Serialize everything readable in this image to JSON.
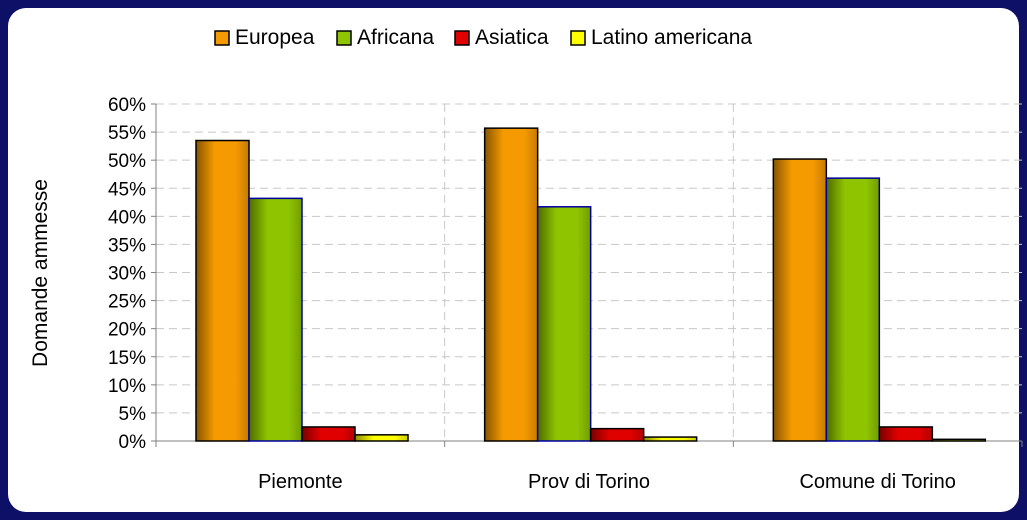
{
  "chart_data": {
    "type": "bar",
    "categories": [
      "Piemonte",
      "Prov di Torino",
      "Comune di Torino"
    ],
    "series": [
      {
        "name": "Europea",
        "values": [
          53.5,
          55.7,
          50.2
        ],
        "color": "#f59a00"
      },
      {
        "name": "Africana",
        "values": [
          43.2,
          41.7,
          46.8
        ],
        "color": "#8fc400"
      },
      {
        "name": "Asiatica",
        "values": [
          2.5,
          2.2,
          2.5
        ],
        "color": "#e00000"
      },
      {
        "name": "Latino americana",
        "values": [
          1.1,
          0.7,
          0.3
        ],
        "color": "#ffff00"
      }
    ],
    "ylabel": "Domande ammesse",
    "ylim": [
      0,
      60
    ],
    "yticks": [
      "0%",
      "5%",
      "10%",
      "15%",
      "20%",
      "25%",
      "30%",
      "35%",
      "40%",
      "45%",
      "50%",
      "55%",
      "60%"
    ],
    "grid": true,
    "legend_position": "top"
  }
}
